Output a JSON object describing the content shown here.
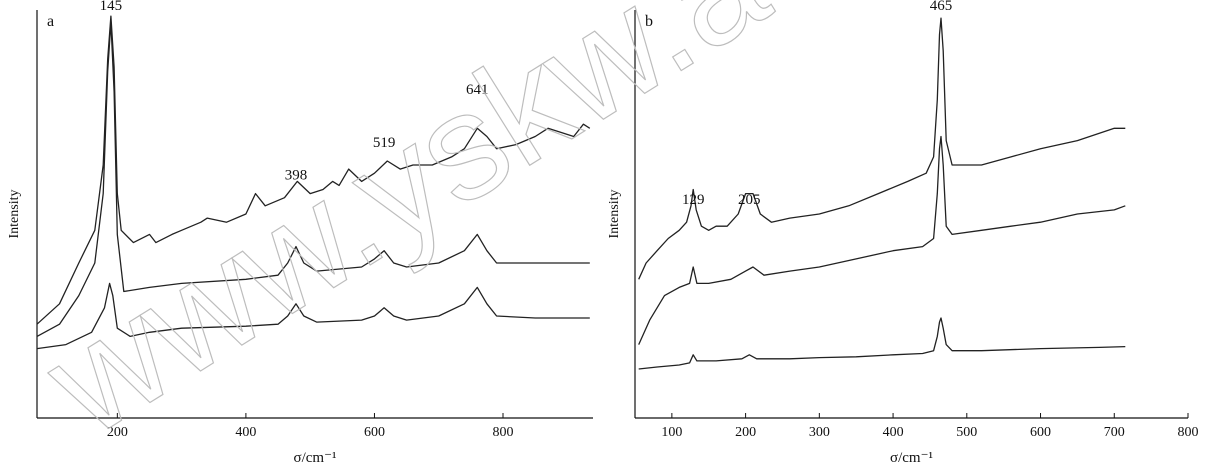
{
  "watermark": "www.yskw.ac.cn",
  "chart_data": [
    {
      "type": "line",
      "panel_label": "a",
      "xlabel": "σ/cm⁻¹",
      "ylabel": "Intensity",
      "xlim": [
        75,
        940
      ],
      "ylim": [
        0,
        1
      ],
      "xticks": [
        200,
        400,
        600,
        800
      ],
      "xtick_labels": [
        "200",
        "400",
        "600",
        "800"
      ],
      "grid": false,
      "annotations": [
        {
          "text": "145",
          "x": 190,
          "y": 0.985
        },
        {
          "text": "398",
          "x": 478,
          "y": 0.57
        },
        {
          "text": "519",
          "x": 615,
          "y": 0.65
        },
        {
          "text": "641",
          "x": 760,
          "y": 0.78
        }
      ],
      "series": [
        {
          "points": [
            [
              75,
              0.23
            ],
            [
              110,
              0.28
            ],
            [
              140,
              0.38
            ],
            [
              165,
              0.46
            ],
            [
              178,
              0.62
            ],
            [
              185,
              0.88
            ],
            [
              190,
              0.985
            ],
            [
              195,
              0.86
            ],
            [
              200,
              0.55
            ],
            [
              206,
              0.46
            ],
            [
              225,
              0.43
            ],
            [
              250,
              0.45
            ],
            [
              260,
              0.43
            ],
            [
              285,
              0.45
            ],
            [
              300,
              0.46
            ],
            [
              330,
              0.48
            ],
            [
              340,
              0.49
            ],
            [
              370,
              0.48
            ],
            [
              400,
              0.5
            ],
            [
              415,
              0.55
            ],
            [
              430,
              0.52
            ],
            [
              460,
              0.54
            ],
            [
              480,
              0.58
            ],
            [
              500,
              0.55
            ],
            [
              520,
              0.56
            ],
            [
              535,
              0.58
            ],
            [
              545,
              0.57
            ],
            [
              560,
              0.61
            ],
            [
              580,
              0.58
            ],
            [
              600,
              0.6
            ],
            [
              620,
              0.63
            ],
            [
              640,
              0.61
            ],
            [
              660,
              0.62
            ],
            [
              690,
              0.62
            ],
            [
              720,
              0.64
            ],
            [
              740,
              0.66
            ],
            [
              760,
              0.71
            ],
            [
              775,
              0.69
            ],
            [
              790,
              0.66
            ],
            [
              820,
              0.67
            ],
            [
              850,
              0.69
            ],
            [
              870,
              0.71
            ],
            [
              890,
              0.7
            ],
            [
              910,
              0.69
            ],
            [
              925,
              0.72
            ],
            [
              935,
              0.71
            ]
          ]
        },
        {
          "points": [
            [
              75,
              0.2
            ],
            [
              110,
              0.23
            ],
            [
              140,
              0.3
            ],
            [
              165,
              0.38
            ],
            [
              178,
              0.55
            ],
            [
              185,
              0.85
            ],
            [
              190,
              0.97
            ],
            [
              195,
              0.8
            ],
            [
              200,
              0.45
            ],
            [
              210,
              0.31
            ],
            [
              250,
              0.32
            ],
            [
              300,
              0.33
            ],
            [
              400,
              0.34
            ],
            [
              450,
              0.35
            ],
            [
              465,
              0.38
            ],
            [
              478,
              0.42
            ],
            [
              490,
              0.38
            ],
            [
              510,
              0.36
            ],
            [
              580,
              0.37
            ],
            [
              600,
              0.39
            ],
            [
              615,
              0.41
            ],
            [
              630,
              0.38
            ],
            [
              650,
              0.37
            ],
            [
              700,
              0.38
            ],
            [
              740,
              0.41
            ],
            [
              760,
              0.45
            ],
            [
              775,
              0.41
            ],
            [
              790,
              0.38
            ],
            [
              850,
              0.38
            ],
            [
              935,
              0.38
            ]
          ]
        },
        {
          "points": [
            [
              75,
              0.17
            ],
            [
              120,
              0.18
            ],
            [
              160,
              0.21
            ],
            [
              180,
              0.27
            ],
            [
              188,
              0.33
            ],
            [
              193,
              0.3
            ],
            [
              200,
              0.22
            ],
            [
              220,
              0.2
            ],
            [
              250,
              0.21
            ],
            [
              300,
              0.22
            ],
            [
              400,
              0.225
            ],
            [
              450,
              0.23
            ],
            [
              465,
              0.25
            ],
            [
              478,
              0.28
            ],
            [
              490,
              0.25
            ],
            [
              510,
              0.235
            ],
            [
              580,
              0.24
            ],
            [
              600,
              0.25
            ],
            [
              615,
              0.27
            ],
            [
              630,
              0.25
            ],
            [
              650,
              0.24
            ],
            [
              700,
              0.25
            ],
            [
              740,
              0.28
            ],
            [
              760,
              0.32
            ],
            [
              775,
              0.28
            ],
            [
              790,
              0.25
            ],
            [
              850,
              0.245
            ],
            [
              935,
              0.245
            ]
          ]
        }
      ]
    },
    {
      "type": "line",
      "panel_label": "b",
      "xlabel": "σ/cm⁻¹",
      "ylabel": "Intensity",
      "xlim": [
        50,
        800
      ],
      "ylim": [
        0,
        1
      ],
      "xticks": [
        100,
        200,
        300,
        400,
        500,
        600,
        700,
        800
      ],
      "xtick_labels": [
        "100",
        "200",
        "300",
        "400",
        "500",
        "600",
        "700",
        "800"
      ],
      "grid": false,
      "annotations": [
        {
          "text": "465",
          "x": 465,
          "y": 0.985
        },
        {
          "text": "129",
          "x": 129,
          "y": 0.51
        },
        {
          "text": "205",
          "x": 205,
          "y": 0.51
        }
      ],
      "series": [
        {
          "points": [
            [
              55,
              0.34
            ],
            [
              65,
              0.38
            ],
            [
              80,
              0.41
            ],
            [
              95,
              0.44
            ],
            [
              110,
              0.46
            ],
            [
              120,
              0.48
            ],
            [
              126,
              0.52
            ],
            [
              129,
              0.56
            ],
            [
              133,
              0.51
            ],
            [
              140,
              0.47
            ],
            [
              150,
              0.46
            ],
            [
              160,
              0.47
            ],
            [
              175,
              0.47
            ],
            [
              190,
              0.5
            ],
            [
              200,
              0.55
            ],
            [
              210,
              0.55
            ],
            [
              220,
              0.5
            ],
            [
              235,
              0.48
            ],
            [
              260,
              0.49
            ],
            [
              300,
              0.5
            ],
            [
              340,
              0.52
            ],
            [
              380,
              0.55
            ],
            [
              420,
              0.58
            ],
            [
              445,
              0.6
            ],
            [
              455,
              0.64
            ],
            [
              460,
              0.78
            ],
            [
              463,
              0.94
            ],
            [
              465,
              0.98
            ],
            [
              468,
              0.9
            ],
            [
              472,
              0.68
            ],
            [
              480,
              0.62
            ],
            [
              520,
              0.62
            ],
            [
              560,
              0.64
            ],
            [
              600,
              0.66
            ],
            [
              650,
              0.68
            ],
            [
              700,
              0.71
            ],
            [
              715,
              0.71
            ]
          ]
        },
        {
          "points": [
            [
              55,
              0.18
            ],
            [
              70,
              0.24
            ],
            [
              90,
              0.3
            ],
            [
              110,
              0.32
            ],
            [
              124,
              0.33
            ],
            [
              129,
              0.37
            ],
            [
              134,
              0.33
            ],
            [
              150,
              0.33
            ],
            [
              180,
              0.34
            ],
            [
              200,
              0.36
            ],
            [
              210,
              0.37
            ],
            [
              225,
              0.35
            ],
            [
              260,
              0.36
            ],
            [
              300,
              0.37
            ],
            [
              350,
              0.39
            ],
            [
              400,
              0.41
            ],
            [
              440,
              0.42
            ],
            [
              455,
              0.44
            ],
            [
              460,
              0.55
            ],
            [
              463,
              0.66
            ],
            [
              465,
              0.69
            ],
            [
              468,
              0.62
            ],
            [
              472,
              0.47
            ],
            [
              480,
              0.45
            ],
            [
              520,
              0.46
            ],
            [
              560,
              0.47
            ],
            [
              600,
              0.48
            ],
            [
              650,
              0.5
            ],
            [
              700,
              0.51
            ],
            [
              715,
              0.52
            ]
          ]
        },
        {
          "points": [
            [
              55,
              0.12
            ],
            [
              80,
              0.125
            ],
            [
              110,
              0.13
            ],
            [
              124,
              0.135
            ],
            [
              129,
              0.155
            ],
            [
              134,
              0.14
            ],
            [
              160,
              0.14
            ],
            [
              195,
              0.145
            ],
            [
              205,
              0.155
            ],
            [
              215,
              0.145
            ],
            [
              260,
              0.145
            ],
            [
              300,
              0.148
            ],
            [
              350,
              0.15
            ],
            [
              400,
              0.155
            ],
            [
              440,
              0.158
            ],
            [
              455,
              0.165
            ],
            [
              460,
              0.2
            ],
            [
              463,
              0.235
            ],
            [
              465,
              0.245
            ],
            [
              468,
              0.22
            ],
            [
              472,
              0.18
            ],
            [
              480,
              0.165
            ],
            [
              520,
              0.165
            ],
            [
              600,
              0.17
            ],
            [
              680,
              0.173
            ],
            [
              715,
              0.175
            ]
          ]
        }
      ]
    }
  ]
}
